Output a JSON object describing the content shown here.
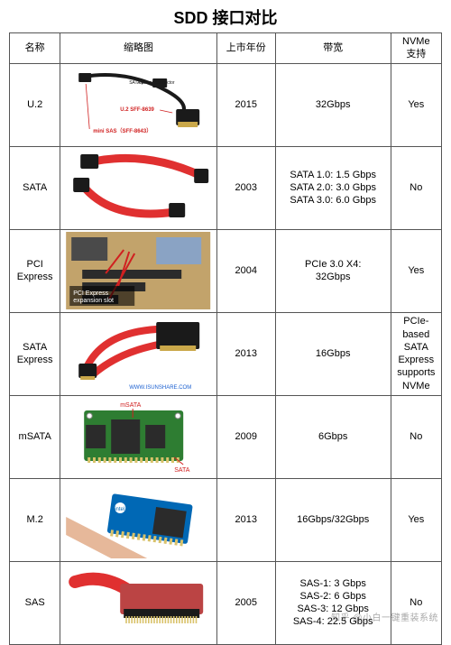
{
  "title": "SDD 接口对比",
  "columns": {
    "name": "名称",
    "thumb": "缩略图",
    "year": "上市年份",
    "bw": "带宽",
    "nvme": "NVMe\n支持"
  },
  "palette": {
    "cable_red": "#e03030",
    "connector_black": "#1a1a1a",
    "connector_gold": "#caa84a",
    "pcb_green": "#2e7d32",
    "pcb_pad": "#d9c26a",
    "board_tan": "#c2a36b",
    "chip_dark": "#2b2b2b",
    "intel_blue": "#0068b5",
    "skin": "#e6b89a",
    "border": "#555555",
    "label_red": "#d02020",
    "label_blue": "#1a5fd0"
  },
  "rows": [
    {
      "name": "U.2",
      "thumb_type": "u2",
      "thumb_labels": {
        "a": "SATA power connector",
        "b": "U.2  SFF-8639",
        "c": "mini SAS（SFF-8643）"
      },
      "year": "2015",
      "bw": "32Gbps",
      "nvme": "Yes"
    },
    {
      "name": "SATA",
      "thumb_type": "sata",
      "year": "2003",
      "bw": "SATA 1.0: 1.5 Gbps\nSATA 2.0: 3.0 Gbps\nSATA 3.0: 6.0 Gbps",
      "nvme": "No"
    },
    {
      "name": "PCI Express",
      "thumb_type": "pcie",
      "thumb_labels": {
        "caption": "PCI Express\nexpansion slot"
      },
      "year": "2004",
      "bw": "PCIe 3.0 X4:\n32Gbps",
      "nvme": "Yes"
    },
    {
      "name": "SATA Express",
      "thumb_type": "sata_express",
      "thumb_labels": {
        "wm": "WWW.ISUNSHARE.COM"
      },
      "year": "2013",
      "bw": "16Gbps",
      "nvme": "PCIe-\nbased\nSATA\nExpress\nsupports\nNVMe"
    },
    {
      "name": "mSATA",
      "thumb_type": "msata",
      "thumb_labels": {
        "a": "mSATA",
        "b": "SATA"
      },
      "year": "2009",
      "bw": "6Gbps",
      "nvme": "No"
    },
    {
      "name": "M.2",
      "thumb_type": "m2",
      "year": "2013",
      "bw": "16Gbps/32Gbps",
      "nvme": "Yes"
    },
    {
      "name": "SAS",
      "thumb_type": "sas",
      "year": "2005",
      "bw": "SAS-1: 3 Gbps\nSAS-2: 6 Gbps\nSAS-3: 12 Gbps\nSAS-4: 22.5 Gbps",
      "nvme": "No"
    }
  ],
  "watermark": "知乎 @小白一键重装系统"
}
